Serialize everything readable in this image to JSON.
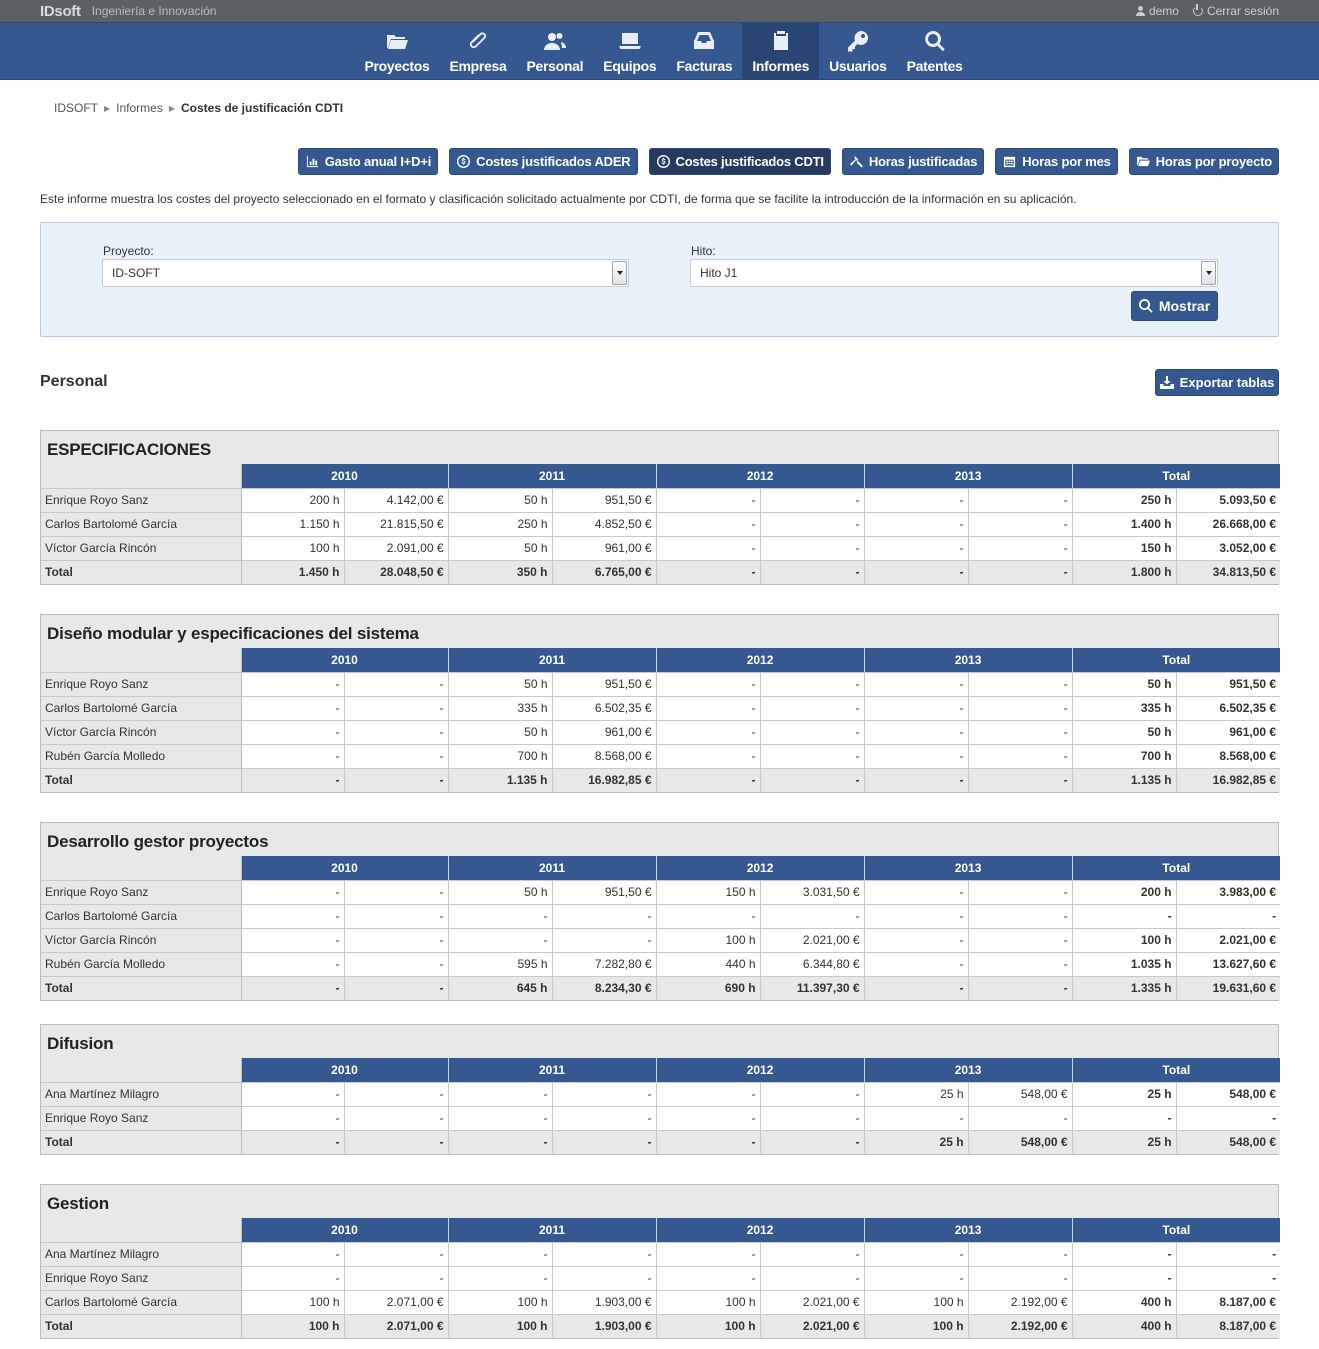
{
  "topbar": {
    "brand": "IDsoft",
    "tagline": "Ingeniería e Innovación",
    "user": "demo",
    "logout": "Cerrar sesión"
  },
  "nav": [
    {
      "label": "Proyectos",
      "icon": "folder-icon"
    },
    {
      "label": "Empresa",
      "icon": "paperclip-icon"
    },
    {
      "label": "Personal",
      "icon": "users-icon"
    },
    {
      "label": "Equipos",
      "icon": "laptop-icon"
    },
    {
      "label": "Facturas",
      "icon": "inbox-icon"
    },
    {
      "label": "Informes",
      "icon": "clipboard-icon",
      "active": true
    },
    {
      "label": "Usuarios",
      "icon": "key-icon"
    },
    {
      "label": "Patentes",
      "icon": "search-icon"
    }
  ],
  "breadcrumb": {
    "root": "IDSOFT",
    "parent": "Informes",
    "current": "Costes de justificación CDTI"
  },
  "report_buttons": [
    {
      "label": "Gasto anual I+D+i",
      "icon": "bar-chart-icon"
    },
    {
      "label": "Costes justificados ADER",
      "icon": "coin-icon"
    },
    {
      "label": "Costes justificados CDTI",
      "icon": "coin-icon",
      "active": true
    },
    {
      "label": "Horas justificadas",
      "icon": "hammer-icon"
    },
    {
      "label": "Horas por mes",
      "icon": "calendar-icon"
    },
    {
      "label": "Horas por proyecto",
      "icon": "folder-icon"
    }
  ],
  "description": "Este informe muestra los costes del proyecto seleccionado en el formato y clasificación solicitado actualmente por CDTI, de forma que se facilite la introducción de la información en su aplicación.",
  "filter": {
    "proyecto_label": "Proyecto:",
    "proyecto_value": "ID-SOFT",
    "hito_label": "Hito:",
    "hito_value": "Hito J1",
    "show_button": "Mostrar"
  },
  "section": {
    "title": "Personal",
    "export_button": "Exportar tablas"
  },
  "table_headers": [
    "2010",
    "2011",
    "2012",
    "2013",
    "Total"
  ],
  "groups": [
    {
      "title": "ESPECIFICACIONES",
      "rows": [
        [
          "Enrique Royo Sanz",
          "200 h",
          "4.142,00 €",
          "50 h",
          "951,50 €",
          "-",
          "-",
          "-",
          "-",
          "250 h",
          "5.093,50 €"
        ],
        [
          "Carlos Bartolomé García",
          "1.150 h",
          "21.815,50 €",
          "250 h",
          "4.852,50 €",
          "-",
          "-",
          "-",
          "-",
          "1.400 h",
          "26.668,00 €"
        ],
        [
          "Víctor García Rincón",
          "100 h",
          "2.091,00 €",
          "50 h",
          "961,00 €",
          "-",
          "-",
          "-",
          "-",
          "150 h",
          "3.052,00 €"
        ]
      ],
      "total": [
        "Total",
        "1.450 h",
        "28.048,50 €",
        "350 h",
        "6.765,00 €",
        "-",
        "-",
        "-",
        "-",
        "1.800 h",
        "34.813,50 €"
      ]
    },
    {
      "title": "Diseño modular y especificaciones del sistema",
      "rows": [
        [
          "Enrique Royo Sanz",
          "-",
          "-",
          "50 h",
          "951,50 €",
          "-",
          "-",
          "-",
          "-",
          "50 h",
          "951,50 €"
        ],
        [
          "Carlos Bartolomé García",
          "-",
          "-",
          "335 h",
          "6.502,35 €",
          "-",
          "-",
          "-",
          "-",
          "335 h",
          "6.502,35 €"
        ],
        [
          "Víctor García Rincón",
          "-",
          "-",
          "50 h",
          "961,00 €",
          "-",
          "-",
          "-",
          "-",
          "50 h",
          "961,00 €"
        ],
        [
          "Rubén García Molledo",
          "-",
          "-",
          "700 h",
          "8.568,00 €",
          "-",
          "-",
          "-",
          "-",
          "700 h",
          "8.568,00 €"
        ]
      ],
      "total": [
        "Total",
        "-",
        "-",
        "1.135 h",
        "16.982,85 €",
        "-",
        "-",
        "-",
        "-",
        "1.135 h",
        "16.982,85 €"
      ]
    },
    {
      "title": "Desarrollo gestor proyectos",
      "rows": [
        [
          "Enrique Royo Sanz",
          "-",
          "-",
          "50 h",
          "951,50 €",
          "150 h",
          "3.031,50 €",
          "-",
          "-",
          "200 h",
          "3.983,00 €"
        ],
        [
          "Carlos Bartolomé García",
          "-",
          "-",
          "-",
          "-",
          "-",
          "-",
          "-",
          "-",
          "-",
          "-"
        ],
        [
          "Víctor García Rincón",
          "-",
          "-",
          "-",
          "-",
          "100 h",
          "2.021,00 €",
          "-",
          "-",
          "100 h",
          "2.021,00 €"
        ],
        [
          "Rubén García Molledo",
          "-",
          "-",
          "595 h",
          "7.282,80 €",
          "440 h",
          "6.344,80 €",
          "-",
          "-",
          "1.035 h",
          "13.627,60 €"
        ]
      ],
      "total": [
        "Total",
        "-",
        "-",
        "645 h",
        "8.234,30 €",
        "690 h",
        "11.397,30 €",
        "-",
        "-",
        "1.335 h",
        "19.631,60 €"
      ]
    },
    {
      "title": "Difusion",
      "rows": [
        [
          "Ana Martínez Milagro",
          "-",
          "-",
          "-",
          "-",
          "-",
          "-",
          "25 h",
          "548,00 €",
          "25 h",
          "548,00 €"
        ],
        [
          "Enrique Royo Sanz",
          "-",
          "-",
          "-",
          "-",
          "-",
          "-",
          "-",
          "-",
          "-",
          "-"
        ]
      ],
      "total": [
        "Total",
        "-",
        "-",
        "-",
        "-",
        "-",
        "-",
        "25 h",
        "548,00 €",
        "25 h",
        "548,00 €"
      ]
    },
    {
      "title": "Gestion",
      "rows": [
        [
          "Ana Martínez Milagro",
          "-",
          "-",
          "-",
          "-",
          "-",
          "-",
          "-",
          "-",
          "-",
          "-"
        ],
        [
          "Enrique Royo Sanz",
          "-",
          "-",
          "-",
          "-",
          "-",
          "-",
          "-",
          "-",
          "-",
          "-"
        ],
        [
          "Carlos Bartolomé García",
          "100 h",
          "2.071,00 €",
          "100 h",
          "1.903,00 €",
          "100 h",
          "2.021,00 €",
          "100 h",
          "2.192,00 €",
          "400 h",
          "8.187,00 €"
        ]
      ],
      "total": [
        "Total",
        "100 h",
        "2.071,00 €",
        "100 h",
        "1.903,00 €",
        "100 h",
        "2.021,00 €",
        "100 h",
        "2.192,00 €",
        "400 h",
        "8.187,00 €"
      ]
    }
  ]
}
